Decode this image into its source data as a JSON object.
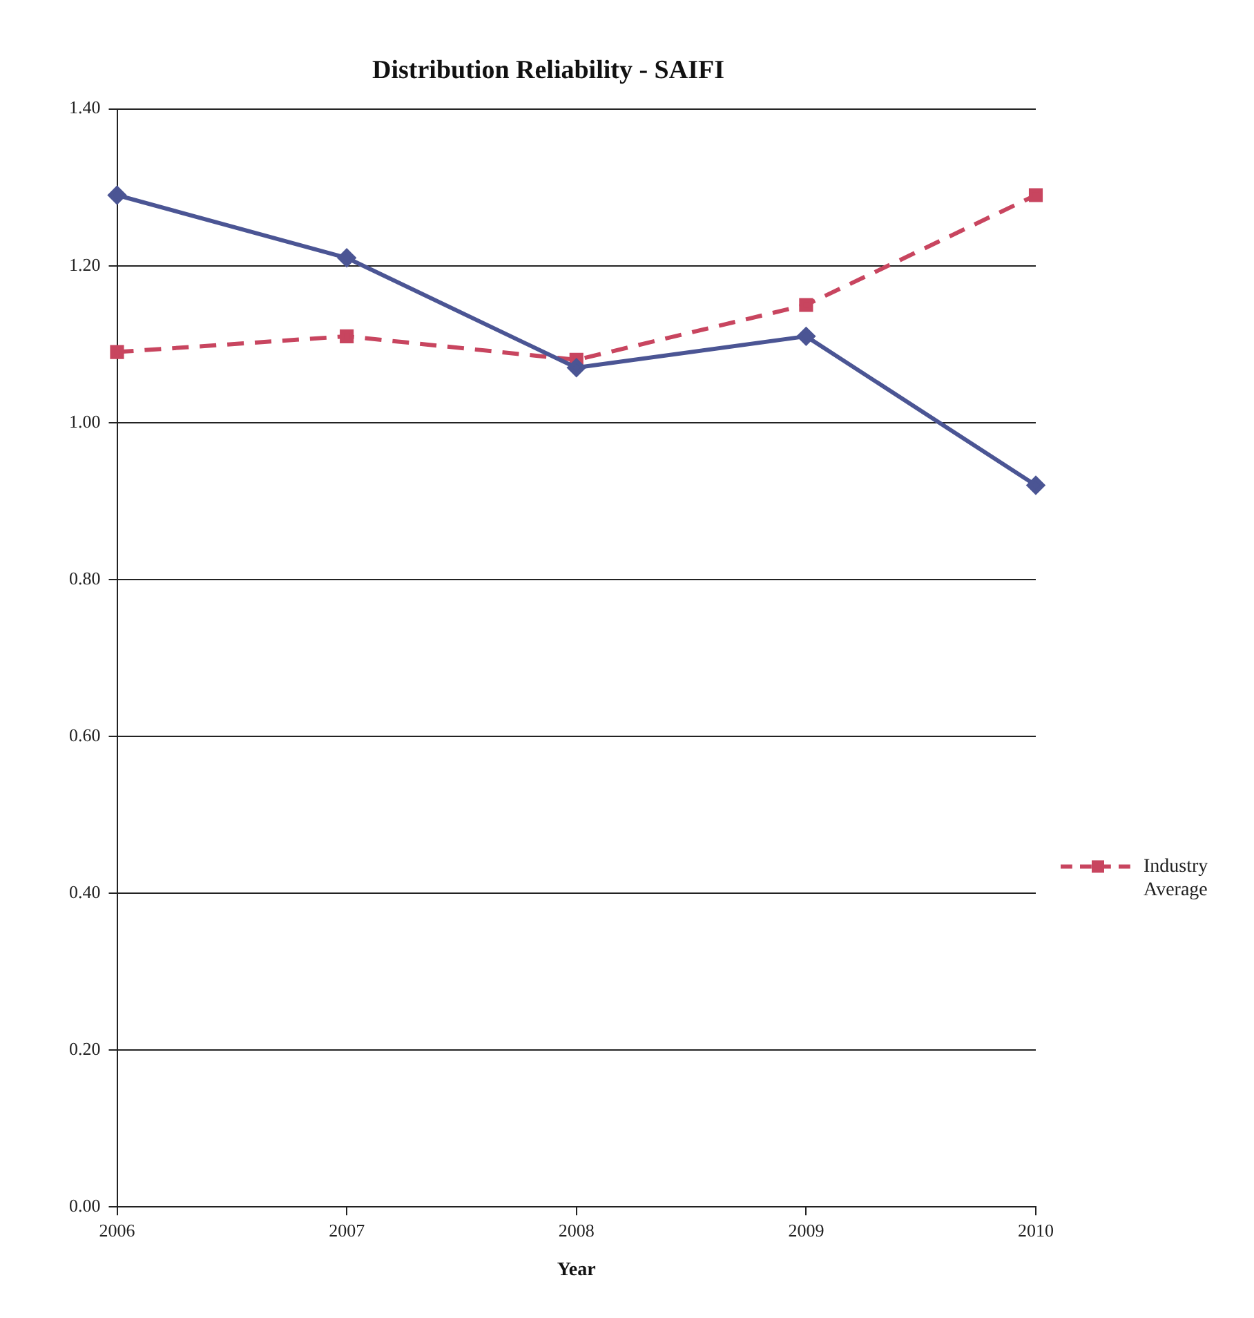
{
  "chart_data": {
    "type": "line",
    "title": "Distribution Reliability - SAIFI",
    "xlabel": "Year",
    "categories": [
      "2006",
      "2007",
      "2008",
      "2009",
      "2010"
    ],
    "series": [
      {
        "color": "#4b5594",
        "values": [
          1.29,
          1.21,
          1.07,
          1.11,
          0.92
        ],
        "marker": "diamond",
        "line_style": "solid"
      },
      {
        "name": "Industry Average",
        "color": "#c8455f",
        "values": [
          1.09,
          1.11,
          1.08,
          1.15,
          1.29
        ],
        "marker": "square",
        "line_style": "dashed"
      }
    ],
    "ylim": [
      0,
      1.4
    ],
    "yticks": [
      {
        "value": 0,
        "label": "0.00"
      },
      {
        "value": 0.2,
        "label": "0.20"
      },
      {
        "value": 0.4,
        "label": "0.40"
      },
      {
        "value": 0.6,
        "label": "0.60"
      },
      {
        "value": 0.8,
        "label": "0.80"
      },
      {
        "value": 1,
        "label": "1.00"
      },
      {
        "value": 1.2,
        "label": "1.20"
      },
      {
        "value": 1.4,
        "label": "1.40"
      }
    ],
    "grid": "y",
    "legend": "right"
  }
}
